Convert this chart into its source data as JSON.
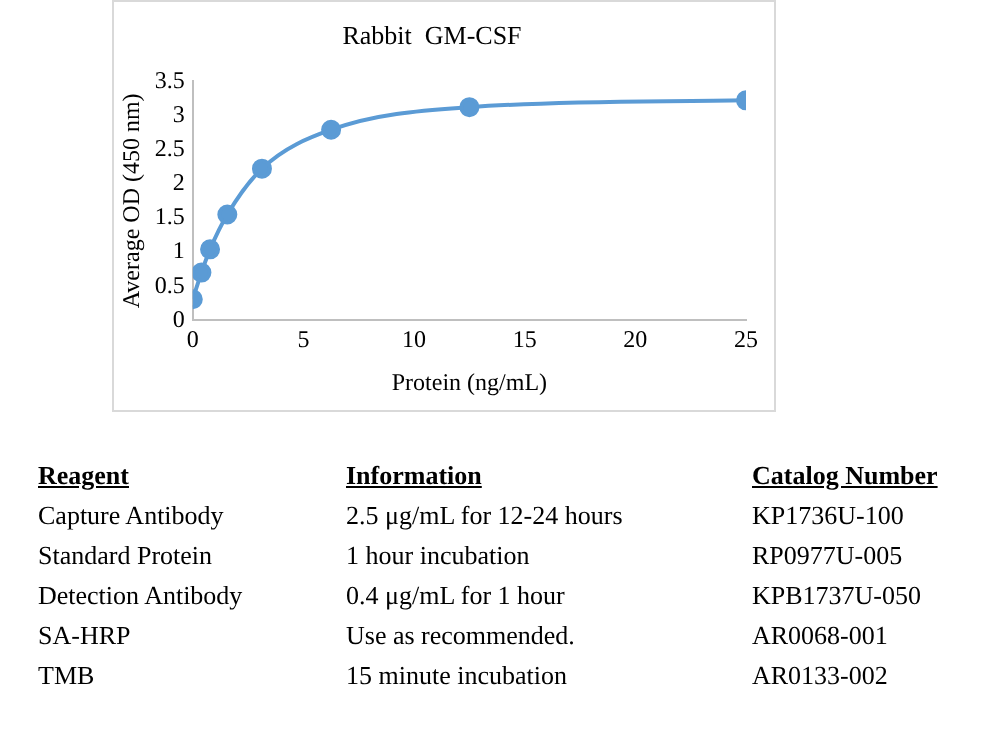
{
  "chart_data": {
    "type": "line",
    "title": "Rabbit  GM-CSF",
    "xlabel": "Protein (ng/mL)",
    "ylabel": "Average OD (450 nm)",
    "x": [
      0,
      0.39,
      0.78,
      1.56,
      3.125,
      6.25,
      12.5,
      25
    ],
    "series": [
      {
        "color": "#5b9bd5",
        "values": [
          0.31,
          0.7,
          1.04,
          1.55,
          2.22,
          2.79,
          3.12,
          3.22
        ]
      }
    ],
    "xlim": [
      0,
      25
    ],
    "xticks": [
      0,
      5,
      10,
      15,
      20,
      25
    ],
    "ylim": [
      0,
      3.5
    ],
    "yticks": [
      0,
      0.5,
      1,
      1.5,
      2,
      2.5,
      3,
      3.5
    ],
    "grid": false,
    "legend": false,
    "marker": "circle",
    "line_style": "solid",
    "annotations": [
      "Reagent",
      "Information",
      "Catalog Number",
      "Capture Antibody",
      "2.5 μg/mL for 12-24 hours",
      "KP1736U-100",
      "Standard Protein",
      "1 hour incubation",
      "RP0977U-005",
      "Detection Antibody",
      "0.4 μg/mL for 1 hour",
      "KPB1737U-050",
      "SA-HRP",
      "Use as recommended.",
      "AR0068-001",
      "TMB",
      "15 minute incubation",
      "AR0133-002"
    ]
  }
}
